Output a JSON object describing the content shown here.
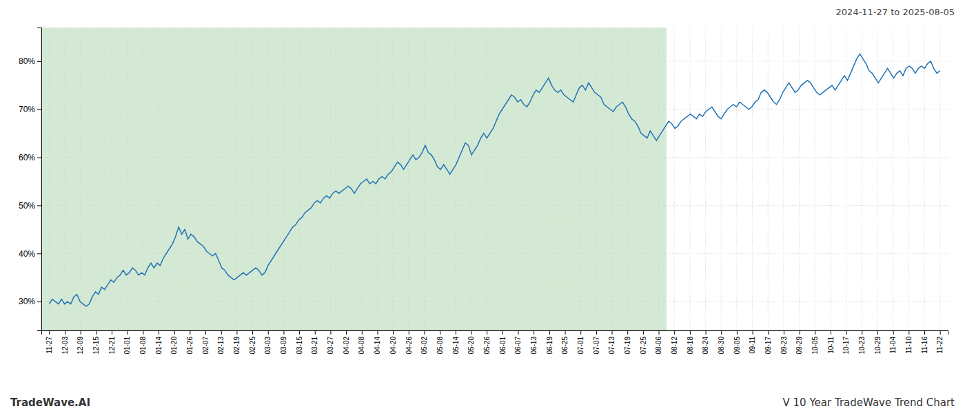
{
  "chart_data": {
    "type": "line",
    "title": "V 10 Year TradeWave Trend Chart",
    "subtitle": "2024-11-27 to 2025-08-05",
    "annotations": [
      "TradeWave.AI"
    ],
    "color": "#2272B5",
    "grid": true,
    "xlim": [
      -0.5,
      57.5
    ],
    "xticks": [
      {
        "value": 0,
        "label": "11-27"
      },
      {
        "value": 1,
        "label": "12-03"
      },
      {
        "value": 2,
        "label": "12-09"
      },
      {
        "value": 3,
        "label": "12-15"
      },
      {
        "value": 4,
        "label": "12-21"
      },
      {
        "value": 5,
        "label": "01-01"
      },
      {
        "value": 6,
        "label": "01-08"
      },
      {
        "value": 7,
        "label": "01-14"
      },
      {
        "value": 8,
        "label": "01-20"
      },
      {
        "value": 9,
        "label": "01-26"
      },
      {
        "value": 10,
        "label": "02-07"
      },
      {
        "value": 11,
        "label": "02-13"
      },
      {
        "value": 12,
        "label": "02-19"
      },
      {
        "value": 13,
        "label": "02-25"
      },
      {
        "value": 14,
        "label": "03-03"
      },
      {
        "value": 15,
        "label": "03-09"
      },
      {
        "value": 16,
        "label": "03-15"
      },
      {
        "value": 17,
        "label": "03-21"
      },
      {
        "value": 18,
        "label": "03-27"
      },
      {
        "value": 19,
        "label": "04-02"
      },
      {
        "value": 20,
        "label": "04-08"
      },
      {
        "value": 21,
        "label": "04-14"
      },
      {
        "value": 22,
        "label": "04-20"
      },
      {
        "value": 23,
        "label": "04-26"
      },
      {
        "value": 24,
        "label": "05-02"
      },
      {
        "value": 25,
        "label": "05-08"
      },
      {
        "value": 26,
        "label": "05-14"
      },
      {
        "value": 27,
        "label": "05-20"
      },
      {
        "value": 28,
        "label": "05-26"
      },
      {
        "value": 29,
        "label": "06-01"
      },
      {
        "value": 30,
        "label": "06-07"
      },
      {
        "value": 31,
        "label": "06-13"
      },
      {
        "value": 32,
        "label": "06-19"
      },
      {
        "value": 33,
        "label": "06-25"
      },
      {
        "value": 34,
        "label": "07-01"
      },
      {
        "value": 35,
        "label": "07-07"
      },
      {
        "value": 36,
        "label": "07-13"
      },
      {
        "value": 37,
        "label": "07-19"
      },
      {
        "value": 38,
        "label": "07-25"
      },
      {
        "value": 39,
        "label": "08-06"
      },
      {
        "value": 40,
        "label": "08-12"
      },
      {
        "value": 41,
        "label": "08-18"
      },
      {
        "value": 42,
        "label": "08-24"
      },
      {
        "value": 43,
        "label": "08-30"
      },
      {
        "value": 44,
        "label": "09-05"
      },
      {
        "value": 45,
        "label": "09-11"
      },
      {
        "value": 46,
        "label": "09-17"
      },
      {
        "value": 47,
        "label": "09-23"
      },
      {
        "value": 48,
        "label": "09-29"
      },
      {
        "value": 49,
        "label": "10-05"
      },
      {
        "value": 50,
        "label": "10-11"
      },
      {
        "value": 51,
        "label": "10-17"
      },
      {
        "value": 52,
        "label": "10-23"
      },
      {
        "value": 53,
        "label": "10-29"
      },
      {
        "value": 54,
        "label": "11-04"
      },
      {
        "value": 55,
        "label": "11-10"
      },
      {
        "value": 56,
        "label": "11-16"
      },
      {
        "value": 57,
        "label": "11-22"
      }
    ],
    "ylim": [
      24,
      87
    ],
    "yticks": [
      {
        "value": 30,
        "label": "30%"
      },
      {
        "value": 40,
        "label": "40%"
      },
      {
        "value": 50,
        "label": "50%"
      },
      {
        "value": 60,
        "label": "60%"
      },
      {
        "value": 70,
        "label": "70%"
      },
      {
        "value": 80,
        "label": "80%"
      }
    ],
    "shaded": {
      "range": [
        -0.5,
        39.5
      ],
      "color": "#d4e9d4"
    },
    "values": [
      29.5,
      30.5,
      30.0,
      29.5,
      30.5,
      29.5,
      30.0,
      29.5,
      31.0,
      31.5,
      30.0,
      29.5,
      29.0,
      29.5,
      31.0,
      32.0,
      31.5,
      33.0,
      32.5,
      33.5,
      34.5,
      34.0,
      35.0,
      35.5,
      36.5,
      35.5,
      36.0,
      37.0,
      36.5,
      35.5,
      36.0,
      35.5,
      37.0,
      38.0,
      37.0,
      38.0,
      37.5,
      39.0,
      40.0,
      41.0,
      42.0,
      43.5,
      45.5,
      44.0,
      45.0,
      43.0,
      44.0,
      43.5,
      42.5,
      42.0,
      41.5,
      40.5,
      40.0,
      39.5,
      40.0,
      38.5,
      37.0,
      36.5,
      35.5,
      35.0,
      34.5,
      35.0,
      35.5,
      36.0,
      35.5,
      36.0,
      36.5,
      37.0,
      36.5,
      35.5,
      36.0,
      37.5,
      38.5,
      39.5,
      40.5,
      41.5,
      42.5,
      43.5,
      44.5,
      45.5,
      46.0,
      47.0,
      47.5,
      48.5,
      49.0,
      49.5,
      50.5,
      51.0,
      50.5,
      51.5,
      52.0,
      51.5,
      52.5,
      53.0,
      52.5,
      53.0,
      53.5,
      54.0,
      53.5,
      52.5,
      53.5,
      54.5,
      55.0,
      55.5,
      54.5,
      55.0,
      54.5,
      55.5,
      56.0,
      55.5,
      56.5,
      57.0,
      58.0,
      59.0,
      58.5,
      57.5,
      58.5,
      59.5,
      60.5,
      59.5,
      60.0,
      61.0,
      62.5,
      61.0,
      60.5,
      59.5,
      58.0,
      57.5,
      58.5,
      57.5,
      56.5,
      57.5,
      58.5,
      60.0,
      61.5,
      63.0,
      62.5,
      60.5,
      61.5,
      62.5,
      64.0,
      65.0,
      64.0,
      65.0,
      66.0,
      67.5,
      69.0,
      70.0,
      71.0,
      72.0,
      73.0,
      72.5,
      71.5,
      72.0,
      71.0,
      70.5,
      71.5,
      73.0,
      74.0,
      73.5,
      74.5,
      75.5,
      76.5,
      75.0,
      74.0,
      73.5,
      74.0,
      73.0,
      72.5,
      72.0,
      71.5,
      73.0,
      74.5,
      75.0,
      74.0,
      75.5,
      74.5,
      73.5,
      73.0,
      72.5,
      71.0,
      70.5,
      70.0,
      69.5,
      70.5,
      71.0,
      71.5,
      70.5,
      69.0,
      68.0,
      67.5,
      66.5,
      65.0,
      64.5,
      64.0,
      65.5,
      64.5,
      63.5,
      64.5,
      65.5,
      66.5,
      67.5,
      67.0,
      66.0,
      66.5,
      67.5,
      68.0,
      68.5,
      69.0,
      68.5,
      68.0,
      69.0,
      68.5,
      69.5,
      70.0,
      70.5,
      69.5,
      68.5,
      68.0,
      69.0,
      70.0,
      70.5,
      71.0,
      70.5,
      71.5,
      71.0,
      70.5,
      70.0,
      70.5,
      71.5,
      72.0,
      73.5,
      74.0,
      73.5,
      72.5,
      71.5,
      71.0,
      72.0,
      73.5,
      74.5,
      75.5,
      74.5,
      73.5,
      74.0,
      75.0,
      75.5,
      76.0,
      75.5,
      74.5,
      73.5,
      73.0,
      73.5,
      74.0,
      74.5,
      75.0,
      74.0,
      75.0,
      76.0,
      77.0,
      76.0,
      77.5,
      79.0,
      80.5,
      81.5,
      80.5,
      79.5,
      78.0,
      77.5,
      76.5,
      75.5,
      76.5,
      77.5,
      78.5,
      77.5,
      76.5,
      77.5,
      78.0,
      77.0,
      78.5,
      79.0,
      78.5,
      77.5,
      78.5,
      79.0,
      78.5,
      79.5,
      80.0,
      78.5,
      77.5,
      78.0
    ]
  }
}
